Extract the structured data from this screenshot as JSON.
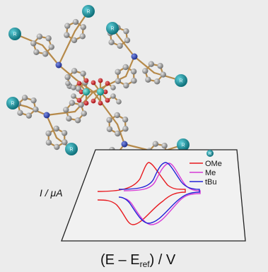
{
  "image": {
    "background_color": "#ececec",
    "substituent_badge_label": "R",
    "badge_color": "#1a9aa8",
    "atom_colors": {
      "carbon": "#8f8f8f",
      "nitrogen": "#2a3fae",
      "oxygen": "#c0181e",
      "metal": "#1aaba6"
    },
    "bond_color": "#b68a4a"
  },
  "cv_plot": {
    "y_axis_label": "I / μA",
    "x_axis_label": "(E – E",
    "x_axis_label_sub": "ref",
    "x_axis_label_tail": ") / V",
    "legend_badge_label": "R"
  },
  "chart_data": {
    "type": "line",
    "title": "",
    "xlabel": "(E – Eref) / V",
    "ylabel": "I / μA",
    "legend_placement": "top-right",
    "series": [
      {
        "name": "OMe",
        "color": "#e8191e"
      },
      {
        "name": "Me",
        "color": "#d63bd6"
      },
      {
        "name": "tBu",
        "color": "#2222d6"
      }
    ]
  }
}
